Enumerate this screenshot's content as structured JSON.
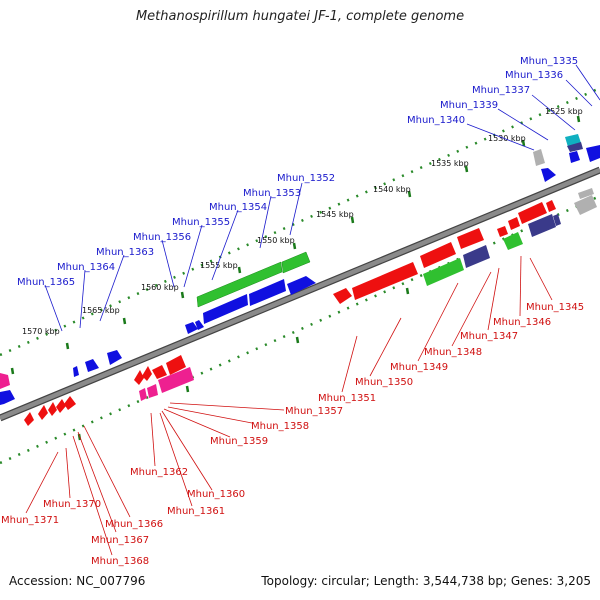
{
  "title": "Methanospirillum hungatei JF-1, complete genome",
  "footer": {
    "accession": "Accession: NC_007796",
    "summary": "Topology: circular; Length: 3,544,738 bp; Genes: 3,205"
  },
  "colors": {
    "top_strand_label": "#1a1acc",
    "bottom_strand_label": "#d01010",
    "backbone": "#7a7a7a",
    "tick": "#2a8a2a",
    "gene_blue": "#1010e0",
    "gene_green": "#30c030",
    "gene_red": "#ee1010",
    "gene_magenta": "#ee2090",
    "gene_navy": "#3a3a8a",
    "gene_cyan": "#10b0c0",
    "gene_gray": "#b0b0b0"
  },
  "scale_labels": [
    "1525 kbp",
    "1530 kbp",
    "1535 kbp",
    "1540 kbp",
    "1545 kbp",
    "1550 kbp",
    "1555 kbp",
    "1560 kbp",
    "1565 kbp",
    "1570 kbp"
  ],
  "top_genes": [
    "Mhun_1335",
    "Mhun_1336",
    "Mhun_1337",
    "Mhun_1339",
    "Mhun_1340",
    "Mhun_1352",
    "Mhun_1353",
    "Mhun_1354",
    "Mhun_1355",
    "Mhun_1356",
    "Mhun_1363",
    "Mhun_1364",
    "Mhun_1365"
  ],
  "bottom_genes": [
    "Mhun_1345",
    "Mhun_1346",
    "Mhun_1347",
    "Mhun_1348",
    "Mhun_1349",
    "Mhun_1350",
    "Mhun_1351",
    "Mhun_1357",
    "Mhun_1358",
    "Mhun_1359",
    "Mhun_1360",
    "Mhun_1361",
    "Mhun_1362",
    "Mhun_1366",
    "Mhun_1367",
    "Mhun_1368",
    "Mhun_1370",
    "Mhun_1371"
  ]
}
